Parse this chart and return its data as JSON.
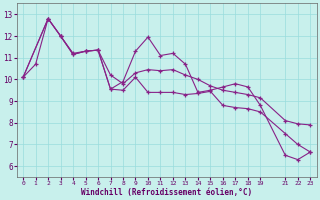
{
  "bg_color": "#c8f0ec",
  "grid_color": "#99dddd",
  "line_color": "#882288",
  "xlabel": "Windchill (Refroidissement éolien,°C)",
  "xlim": [
    -0.5,
    23.5
  ],
  "ylim": [
    5.5,
    13.5
  ],
  "yticks": [
    6,
    7,
    8,
    9,
    10,
    11,
    12,
    13
  ],
  "xtick_positions": [
    0,
    1,
    2,
    3,
    4,
    5,
    6,
    7,
    8,
    9,
    10,
    11,
    12,
    13,
    14,
    15,
    16,
    17,
    18,
    19,
    21,
    22,
    23
  ],
  "xtick_labels": [
    "0",
    "1",
    "2",
    "3",
    "4",
    "5",
    "6",
    "7",
    "8",
    "9",
    "10",
    "11",
    "12",
    "13",
    "14",
    "15",
    "16",
    "17",
    "18",
    "19",
    "21",
    "22",
    "23"
  ],
  "line1_x": [
    0,
    1,
    2,
    3,
    4,
    5,
    6,
    7,
    8,
    9,
    10,
    11,
    12,
    13,
    14,
    15,
    16,
    17,
    18,
    19,
    21,
    22,
    23
  ],
  "line1_y": [
    10.1,
    10.7,
    12.8,
    12.0,
    11.2,
    11.3,
    11.35,
    9.55,
    9.9,
    11.3,
    11.95,
    11.1,
    11.2,
    10.7,
    9.4,
    9.5,
    9.65,
    9.8,
    9.65,
    8.8,
    6.5,
    6.3,
    6.65
  ],
  "line2_x": [
    0,
    2,
    3,
    4,
    5,
    6,
    7,
    8,
    9,
    10,
    11,
    12,
    13,
    14,
    15,
    16,
    17,
    18,
    19,
    21,
    22,
    23
  ],
  "line2_y": [
    10.1,
    12.8,
    12.0,
    11.15,
    11.3,
    11.35,
    10.2,
    9.8,
    10.3,
    10.45,
    10.4,
    10.45,
    10.2,
    10.0,
    9.7,
    9.5,
    9.4,
    9.3,
    9.15,
    8.1,
    7.95,
    7.9
  ],
  "line3_x": [
    0,
    2,
    3,
    4,
    5,
    6,
    7,
    8,
    9,
    10,
    11,
    12,
    13,
    14,
    15,
    16,
    17,
    18,
    19,
    21,
    22,
    23
  ],
  "line3_y": [
    10.1,
    12.8,
    12.0,
    11.15,
    11.3,
    11.35,
    9.55,
    9.5,
    10.1,
    9.4,
    9.4,
    9.4,
    9.3,
    9.35,
    9.45,
    8.8,
    8.7,
    8.65,
    8.5,
    7.5,
    7.0,
    6.65
  ]
}
